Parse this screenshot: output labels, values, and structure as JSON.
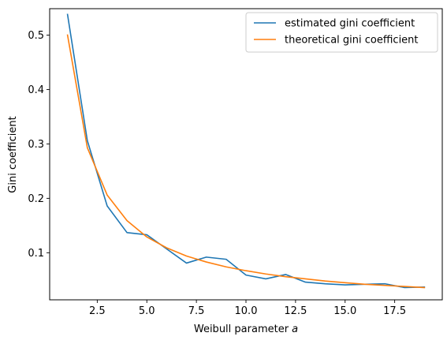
{
  "chart_data": {
    "type": "line",
    "title": "",
    "xlabel": "Weibull parameter ",
    "xlabel_var": "a",
    "ylabel": "Gini coefficient",
    "xlim": [
      0.1,
      19.9
    ],
    "ylim": [
      0.0135,
      0.5485
    ],
    "xticks": [
      2.5,
      5.0,
      7.5,
      10.0,
      12.5,
      15.0,
      17.5
    ],
    "xtick_labels": [
      "2.5",
      "5.0",
      "7.5",
      "10.0",
      "12.5",
      "15.0",
      "17.5"
    ],
    "yticks": [
      0.1,
      0.2,
      0.3,
      0.4,
      0.5
    ],
    "ytick_labels": [
      "0.1",
      "0.2",
      "0.3",
      "0.4",
      "0.5"
    ],
    "grid": false,
    "legend_position": "top-right",
    "x": [
      1,
      2,
      3,
      4,
      5,
      6,
      7,
      8,
      9,
      10,
      11,
      12,
      13,
      14,
      15,
      16,
      17,
      18,
      19
    ],
    "series": [
      {
        "name": "estimated gini coefficient",
        "color": "#1f77b4",
        "values": [
          0.538,
          0.306,
          0.186,
          0.137,
          0.133,
          0.107,
          0.081,
          0.092,
          0.088,
          0.059,
          0.052,
          0.06,
          0.046,
          0.043,
          0.041,
          0.042,
          0.043,
          0.036,
          0.037
        ]
      },
      {
        "name": "theoretical gini coefficient",
        "color": "#ff7f0e",
        "values": [
          0.5,
          0.293,
          0.206,
          0.159,
          0.129,
          0.109,
          0.094,
          0.083,
          0.074,
          0.067,
          0.061,
          0.056,
          0.052,
          0.048,
          0.045,
          0.042,
          0.04,
          0.038,
          0.036
        ]
      }
    ]
  }
}
